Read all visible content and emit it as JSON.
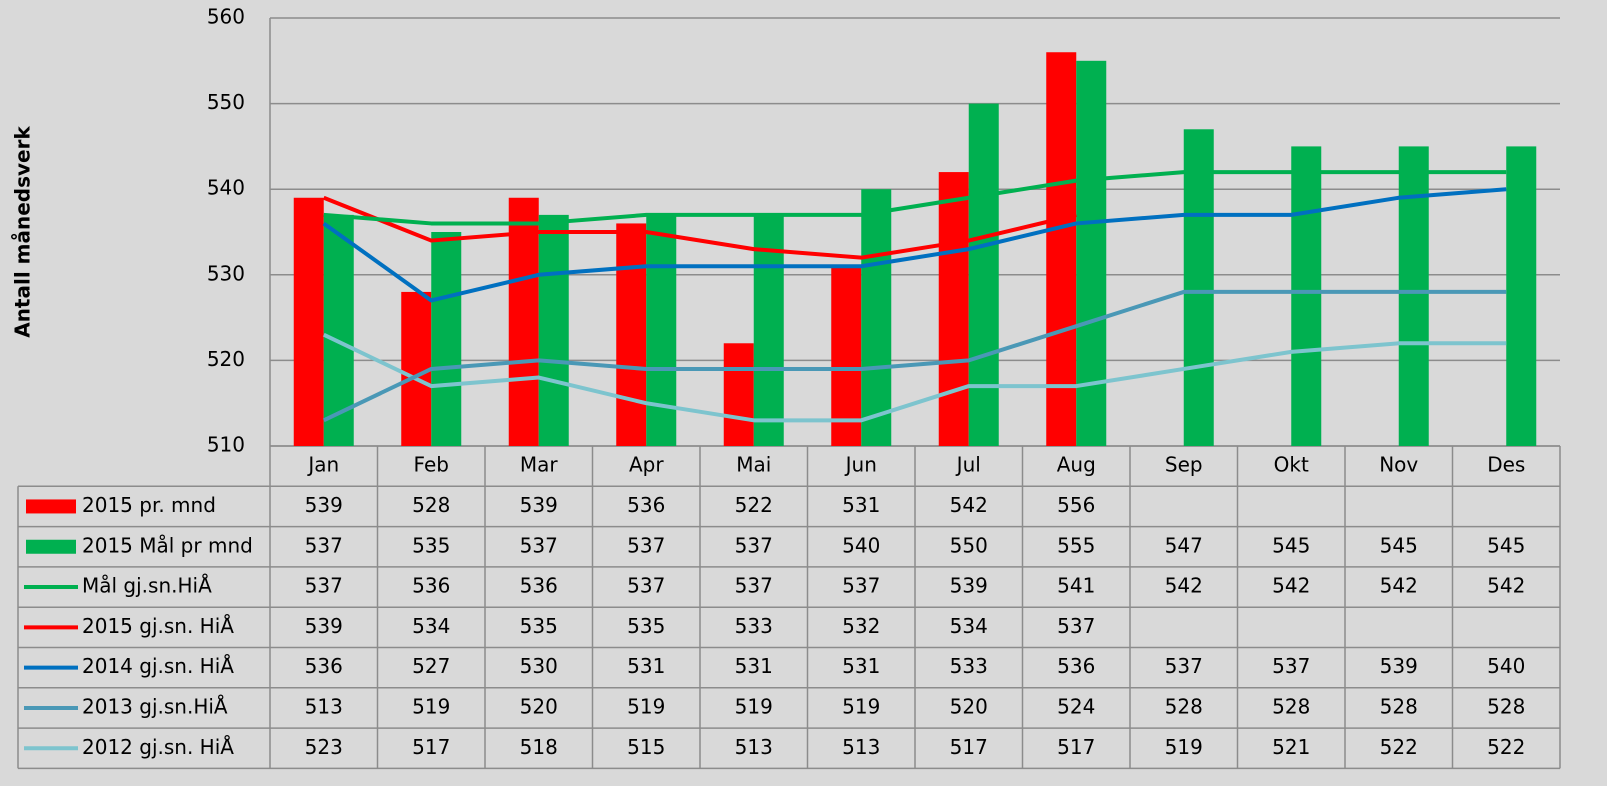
{
  "chart_data": {
    "type": "combo",
    "y_label": "Antall månedsverk",
    "categories": [
      "Jan",
      "Feb",
      "Mar",
      "Apr",
      "Mai",
      "Jun",
      "Jul",
      "Aug",
      "Sep",
      "Okt",
      "Nov",
      "Des"
    ],
    "ylim": [
      510,
      560
    ],
    "yticks": [
      510,
      520,
      530,
      540,
      550,
      560
    ],
    "grid": true,
    "series": [
      {
        "name": "2015 pr. mnd",
        "type": "bar",
        "color": "#ff0000",
        "values": [
          539,
          528,
          539,
          536,
          522,
          531,
          542,
          556,
          null,
          null,
          null,
          null
        ]
      },
      {
        "name": "2015 Mål pr mnd",
        "type": "bar",
        "color": "#00b050",
        "values": [
          537,
          535,
          537,
          537,
          537,
          540,
          550,
          555,
          547,
          545,
          545,
          545
        ]
      },
      {
        "name": "Mål gj.sn.HiÅ",
        "type": "line",
        "color": "#00b050",
        "values": [
          537,
          536,
          536,
          537,
          537,
          537,
          539,
          541,
          542,
          542,
          542,
          542
        ]
      },
      {
        "name": "2015 gj.sn. HiÅ",
        "type": "line",
        "color": "#ff0000",
        "values": [
          539,
          534,
          535,
          535,
          533,
          532,
          534,
          537,
          null,
          null,
          null,
          null
        ]
      },
      {
        "name": "2014 gj.sn. HiÅ",
        "type": "line",
        "color": "#0070c0",
        "values": [
          536,
          527,
          530,
          531,
          531,
          531,
          533,
          536,
          537,
          537,
          539,
          540
        ]
      },
      {
        "name": "2013 gj.sn.HiÅ",
        "type": "line",
        "color": "#4a98b6",
        "values": [
          513,
          519,
          520,
          519,
          519,
          519,
          520,
          524,
          528,
          528,
          528,
          528
        ]
      },
      {
        "name": "2012 gj.sn. HiÅ",
        "type": "line",
        "color": "#7dc4ce",
        "values": [
          523,
          517,
          518,
          515,
          513,
          513,
          517,
          517,
          519,
          521,
          522,
          522
        ]
      }
    ]
  }
}
